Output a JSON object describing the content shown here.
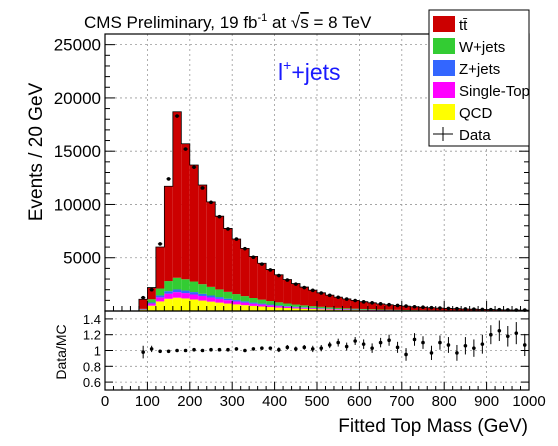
{
  "chart_data": [
    {
      "type": "bar",
      "stacked": true,
      "title_parts": {
        "prefix": "CMS Preliminary, 19 fb",
        "sup": "-1",
        "mid": " at ",
        "sqrt_sym": "√",
        "sqrt_arg": "s",
        "suffix": " = 8 TeV"
      },
      "annotation": {
        "base": "l",
        "sup": "+",
        "rest": "+jets",
        "color": "#1a1aff"
      },
      "ylabel": "Events / 20 GeV",
      "xlim": [
        0,
        1000
      ],
      "ylim": [
        0,
        26000
      ],
      "y_ticks": [
        5000,
        10000,
        15000,
        20000,
        25000
      ],
      "grid": true,
      "legend_position": "top-right",
      "bin_low_edges": [
        80,
        100,
        120,
        140,
        160,
        180,
        200,
        220,
        240,
        260,
        280,
        300,
        320,
        340,
        360,
        380,
        400,
        420,
        440,
        460,
        480,
        500,
        520,
        540,
        560,
        580,
        600,
        620,
        640,
        660,
        680,
        700,
        720,
        740,
        760,
        780,
        800,
        820,
        840,
        860,
        880,
        900,
        920,
        940,
        960,
        980
      ],
      "series": [
        {
          "key": "qcd",
          "name": "QCD",
          "color": "#ffff00",
          "values": [
            90,
            500,
            900,
            1150,
            1250,
            1180,
            1080,
            980,
            880,
            790,
            700,
            620,
            550,
            480,
            420,
            370,
            320,
            280,
            240,
            210,
            180,
            155,
            135,
            115,
            100,
            85,
            75,
            65,
            55,
            48,
            42,
            36,
            31,
            27,
            23,
            20,
            17,
            15,
            13,
            11,
            10,
            9,
            8,
            7,
            6,
            5
          ]
        },
        {
          "key": "single_top",
          "name": "Single-Top",
          "color": "#ff00ff",
          "values": [
            40,
            200,
            380,
            480,
            520,
            500,
            470,
            430,
            390,
            350,
            310,
            275,
            240,
            210,
            185,
            160,
            140,
            120,
            105,
            90,
            78,
            67,
            58,
            50,
            43,
            37,
            32,
            28,
            24,
            21,
            18,
            16,
            14,
            12,
            10,
            9,
            8,
            7,
            6,
            5,
            4,
            4,
            3,
            3,
            3,
            2
          ]
        },
        {
          "key": "z_jets",
          "name": "Z+jets",
          "color": "#3366ff",
          "values": [
            20,
            100,
            180,
            230,
            250,
            240,
            225,
            205,
            185,
            165,
            148,
            130,
            115,
            100,
            88,
            77,
            67,
            58,
            50,
            43,
            37,
            32,
            28,
            24,
            21,
            18,
            16,
            14,
            12,
            10,
            9,
            8,
            7,
            6,
            5,
            5,
            4,
            4,
            3,
            3,
            3,
            2,
            2,
            2,
            2,
            2
          ]
        },
        {
          "key": "w_jets",
          "name": "W+jets",
          "color": "#33cc33",
          "values": [
            50,
            300,
            650,
            950,
            1100,
            1060,
            990,
            900,
            810,
            720,
            640,
            560,
            490,
            430,
            375,
            325,
            285,
            245,
            212,
            185,
            160,
            138,
            120,
            104,
            90,
            78,
            68,
            59,
            51,
            45,
            39,
            34,
            30,
            26,
            23,
            20,
            17,
            15,
            13,
            12,
            10,
            9,
            8,
            7,
            6,
            5
          ]
        },
        {
          "key": "ttbar",
          "name": "tt̄",
          "color": "#cc0000",
          "values": [
            900,
            1100,
            3900,
            8900,
            15580,
            12720,
            10940,
            9310,
            7980,
            6875,
            5950,
            5170,
            4485,
            3910,
            3412,
            2968,
            2588,
            2257,
            1968,
            1717,
            1505,
            1315,
            1149,
            1007,
            886,
            777,
            684,
            601,
            528,
            466,
            412,
            363,
            318,
            279,
            244,
            216,
            194,
            174,
            155,
            138,
            123,
            111,
            99,
            88,
            79,
            71
          ]
        }
      ],
      "data_series": {
        "name": "Data",
        "values": [
          1250,
          2000,
          6300,
          12400,
          18300,
          15200,
          13500,
          11550,
          10200,
          8850,
          7700,
          6750,
          5850,
          5050,
          4400,
          3850,
          3330,
          2900,
          2520,
          2200,
          1940,
          1690,
          1470,
          1290,
          1120,
          980,
          860,
          770,
          670,
          590,
          520,
          460,
          400,
          355,
          315,
          280,
          245,
          220,
          190,
          170,
          150,
          130,
          120,
          105,
          95,
          85
        ]
      }
    },
    {
      "type": "scatter",
      "ylabel": "Data/MC",
      "xlabel": "Fitted Top Mass (GeV)",
      "xlim": [
        0,
        1000
      ],
      "ylim": [
        0.5,
        1.5
      ],
      "y_ticks": [
        0.6,
        0.8,
        1.0,
        1.2,
        1.4
      ],
      "x_ticks": [
        0,
        100,
        200,
        300,
        400,
        500,
        600,
        700,
        800,
        900,
        1000
      ],
      "grid": true,
      "x": [
        90,
        110,
        130,
        150,
        170,
        190,
        210,
        230,
        250,
        270,
        290,
        310,
        330,
        350,
        370,
        390,
        410,
        430,
        450,
        470,
        490,
        510,
        530,
        550,
        570,
        590,
        610,
        630,
        650,
        670,
        690,
        710,
        730,
        750,
        770,
        790,
        810,
        830,
        850,
        870,
        890,
        910,
        930,
        950,
        970,
        990
      ],
      "ratio": [
        0.98,
        1.02,
        0.99,
        0.99,
        1.0,
        1.0,
        1.01,
        1.0,
        1.01,
        1.01,
        1.01,
        1.02,
        1.0,
        1.02,
        1.03,
        1.03,
        1.01,
        1.04,
        1.02,
        1.04,
        1.02,
        1.03,
        1.07,
        1.1,
        1.05,
        1.12,
        1.08,
        1.03,
        1.1,
        1.13,
        1.04,
        0.95,
        1.14,
        1.1,
        0.97,
        1.1,
        1.07,
        0.97,
        1.06,
        1.03,
        1.08,
        1.2,
        1.25,
        1.18,
        1.22,
        1.07
      ],
      "err": [
        0.08,
        0.04,
        0.02,
        0.01,
        0.01,
        0.01,
        0.01,
        0.01,
        0.01,
        0.01,
        0.01,
        0.02,
        0.02,
        0.02,
        0.02,
        0.02,
        0.03,
        0.03,
        0.03,
        0.03,
        0.04,
        0.04,
        0.04,
        0.05,
        0.05,
        0.05,
        0.06,
        0.06,
        0.06,
        0.07,
        0.07,
        0.08,
        0.08,
        0.08,
        0.09,
        0.09,
        0.1,
        0.1,
        0.11,
        0.11,
        0.12,
        0.12,
        0.13,
        0.13,
        0.14,
        0.14
      ]
    }
  ],
  "legend_order": [
    "ttbar",
    "w_jets",
    "z_jets",
    "single_top",
    "qcd",
    "data"
  ]
}
